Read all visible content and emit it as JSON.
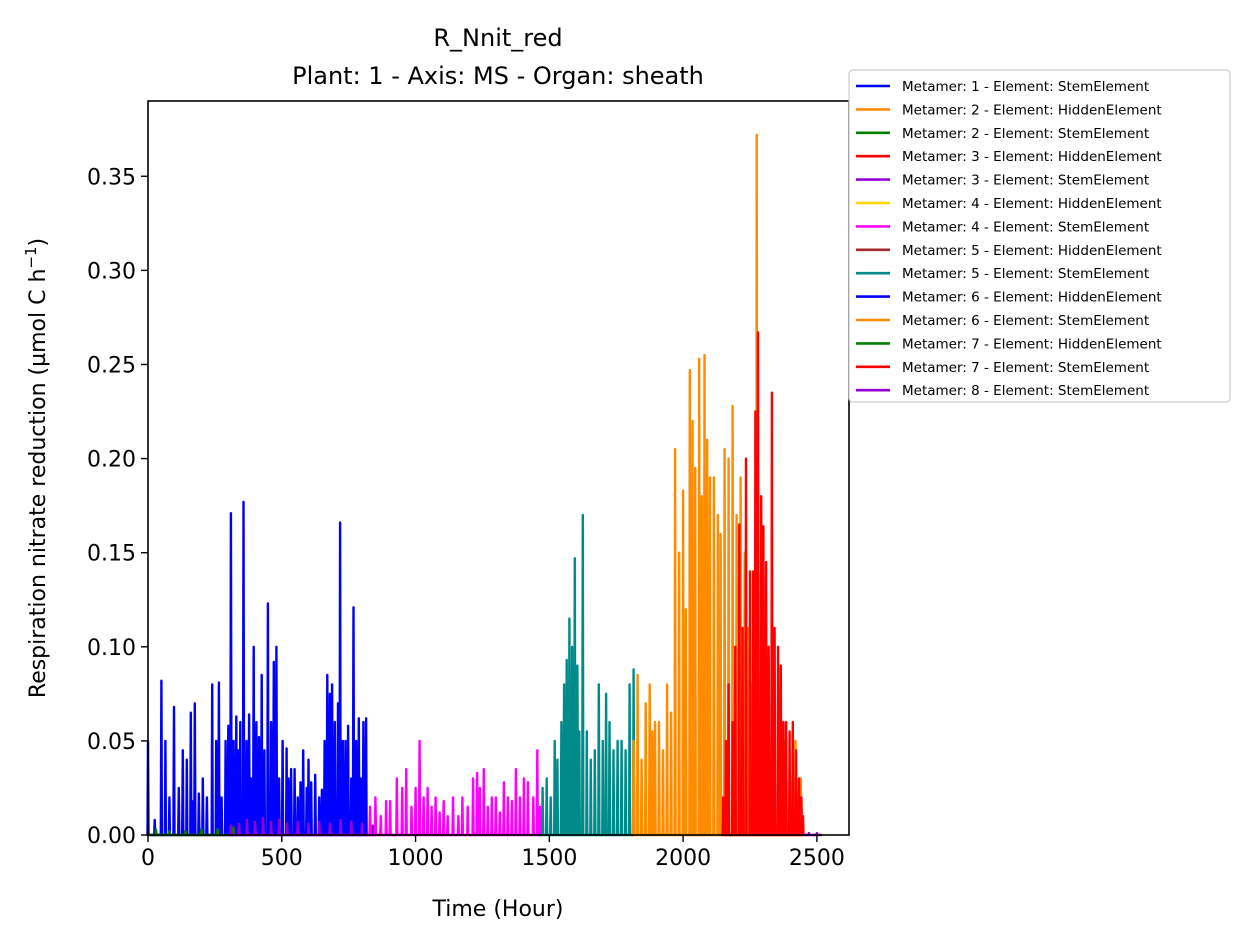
{
  "chart_data": {
    "type": "line",
    "title": "R_Nnit_red",
    "subtitle": "Plant: 1 - Axis: MS - Organ: sheath",
    "xlabel": "Time (Hour)",
    "ylabel": "Respiration nitrate reduction (µmol C h",
    "ylabel_sup": "−1",
    "ylabel_close": ")",
    "xlim": [
      0,
      2620
    ],
    "ylim": [
      0,
      0.39
    ],
    "x_ticks": [
      0,
      500,
      1000,
      1500,
      2000,
      2500
    ],
    "x_tick_labels": [
      "0",
      "500",
      "1000",
      "1500",
      "2000",
      "2500"
    ],
    "y_ticks": [
      0,
      0.05,
      0.1,
      0.15,
      0.2,
      0.25,
      0.3,
      0.35
    ],
    "y_tick_labels": [
      "0.00",
      "0.05",
      "0.10",
      "0.15",
      "0.20",
      "0.25",
      "0.30",
      "0.35"
    ],
    "grid": false,
    "legend_position": "outside-top-right",
    "series": [
      {
        "name": "Metamer: 1 - Element: StemElement",
        "color": "#0000ff",
        "peaks": [
          [
            0,
            0.05
          ],
          [
            25,
            0.008
          ],
          [
            50,
            0.082
          ],
          [
            65,
            0.05
          ],
          [
            80,
            0.02
          ],
          [
            97,
            0.068
          ],
          [
            115,
            0.025
          ],
          [
            130,
            0.045
          ],
          [
            145,
            0.04
          ],
          [
            160,
            0.065
          ],
          [
            170,
            0.018
          ],
          [
            175,
            0.07
          ],
          [
            190,
            0.022
          ],
          [
            205,
            0.03
          ],
          [
            220,
            0.02
          ],
          [
            240,
            0.08
          ],
          [
            255,
            0.05
          ],
          [
            265,
            0.081
          ],
          [
            275,
            0.02
          ],
          [
            290,
            0.05
          ],
          [
            300,
            0.058
          ],
          [
            310,
            0.171
          ],
          [
            320,
            0.05
          ],
          [
            330,
            0.063
          ],
          [
            338,
            0.045
          ],
          [
            345,
            0.06
          ],
          [
            357,
            0.177
          ],
          [
            368,
            0.05
          ],
          [
            378,
            0.064
          ],
          [
            385,
            0.03
          ],
          [
            395,
            0.1
          ],
          [
            405,
            0.06
          ],
          [
            415,
            0.052
          ],
          [
            425,
            0.085
          ],
          [
            435,
            0.045
          ],
          [
            448,
            0.123
          ],
          [
            460,
            0.06
          ],
          [
            470,
            0.092
          ],
          [
            480,
            0.1
          ],
          [
            490,
            0.03
          ],
          [
            503,
            0.05
          ],
          [
            518,
            0.046
          ],
          [
            525,
            0.03
          ],
          [
            535,
            0.035
          ],
          [
            548,
            0.035
          ],
          [
            560,
            0.02
          ],
          [
            570,
            0.028
          ],
          [
            580,
            0.045
          ],
          [
            593,
            0.025
          ],
          [
            600,
            0.04
          ],
          [
            610,
            0.028
          ],
          [
            625,
            0.032
          ],
          [
            640,
            0.02
          ],
          [
            650,
            0.024
          ],
          [
            660,
            0.05
          ],
          [
            670,
            0.085
          ],
          [
            680,
            0.075
          ],
          [
            688,
            0.08
          ],
          [
            698,
            0.06
          ],
          [
            710,
            0.07
          ],
          [
            718,
            0.166
          ],
          [
            728,
            0.05
          ],
          [
            738,
            0.05
          ],
          [
            748,
            0.058
          ],
          [
            760,
            0.03
          ],
          [
            768,
            0.121
          ],
          [
            778,
            0.05
          ],
          [
            788,
            0.062
          ],
          [
            795,
            0.03
          ],
          [
            805,
            0.06
          ],
          [
            815,
            0.062
          ]
        ],
        "span": [
          0,
          820
        ]
      },
      {
        "name": "Metamer: 2 - Element: HiddenElement",
        "color": "#ff8c00",
        "peaks": [],
        "span": null
      },
      {
        "name": "Metamer: 2 - Element: StemElement",
        "color": "#008000",
        "peaks": [
          [
            30,
            0.003
          ],
          [
            80,
            0.002
          ],
          [
            140,
            0.002
          ],
          [
            200,
            0.003
          ],
          [
            260,
            0.003
          ],
          [
            320,
            0.004
          ]
        ],
        "span": [
          0,
          330
        ]
      },
      {
        "name": "Metamer: 3 - Element: HiddenElement",
        "color": "#ff0000",
        "peaks": [],
        "span": null
      },
      {
        "name": "Metamer: 3 - Element: StemElement",
        "color": "#9400d3",
        "peaks": [
          [
            310,
            0.005
          ],
          [
            340,
            0.006
          ],
          [
            370,
            0.008
          ],
          [
            400,
            0.007
          ],
          [
            430,
            0.009
          ],
          [
            460,
            0.007
          ],
          [
            490,
            0.008
          ],
          [
            520,
            0.006
          ],
          [
            560,
            0.007
          ],
          [
            600,
            0.006
          ],
          [
            640,
            0.007
          ],
          [
            680,
            0.006
          ],
          [
            720,
            0.008
          ],
          [
            760,
            0.007
          ],
          [
            800,
            0.006
          ],
          [
            840,
            0.005
          ]
        ],
        "span": [
          300,
          850
        ]
      },
      {
        "name": "Metamer: 4 - Element: HiddenElement",
        "color": "#ffd700",
        "peaks": [],
        "span": null
      },
      {
        "name": "Metamer: 4 - Element: StemElement",
        "color": "#ff00ff",
        "peaks": [
          [
            830,
            0.015
          ],
          [
            850,
            0.02
          ],
          [
            870,
            0.01
          ],
          [
            890,
            0.018
          ],
          [
            905,
            0.018
          ],
          [
            930,
            0.03
          ],
          [
            950,
            0.025
          ],
          [
            965,
            0.035
          ],
          [
            985,
            0.015
          ],
          [
            1000,
            0.025
          ],
          [
            1015,
            0.05
          ],
          [
            1030,
            0.02
          ],
          [
            1045,
            0.025
          ],
          [
            1060,
            0.015
          ],
          [
            1075,
            0.02
          ],
          [
            1090,
            0.012
          ],
          [
            1105,
            0.018
          ],
          [
            1120,
            0.01
          ],
          [
            1140,
            0.02
          ],
          [
            1160,
            0.01
          ],
          [
            1175,
            0.02
          ],
          [
            1195,
            0.015
          ],
          [
            1215,
            0.03
          ],
          [
            1230,
            0.033
          ],
          [
            1240,
            0.025
          ],
          [
            1255,
            0.035
          ],
          [
            1270,
            0.015
          ],
          [
            1285,
            0.02
          ],
          [
            1300,
            0.02
          ],
          [
            1315,
            0.012
          ],
          [
            1330,
            0.028
          ],
          [
            1345,
            0.02
          ],
          [
            1360,
            0.018
          ],
          [
            1375,
            0.035
          ],
          [
            1390,
            0.02
          ],
          [
            1405,
            0.03
          ],
          [
            1420,
            0.028
          ],
          [
            1440,
            0.02
          ],
          [
            1455,
            0.045
          ],
          [
            1465,
            0.015
          ]
        ],
        "span": [
          820,
          1470
        ]
      },
      {
        "name": "Metamer: 5 - Element: HiddenElement",
        "color": "#a52a2a",
        "peaks": [],
        "span": null
      },
      {
        "name": "Metamer: 5 - Element: StemElement",
        "color": "#008b8b",
        "peaks": [
          [
            1475,
            0.025
          ],
          [
            1490,
            0.03
          ],
          [
            1505,
            0.02
          ],
          [
            1520,
            0.05
          ],
          [
            1530,
            0.04
          ],
          [
            1545,
            0.06
          ],
          [
            1555,
            0.08
          ],
          [
            1565,
            0.093
          ],
          [
            1575,
            0.115
          ],
          [
            1585,
            0.1
          ],
          [
            1595,
            0.147
          ],
          [
            1605,
            0.09
          ],
          [
            1612,
            0.055
          ],
          [
            1625,
            0.17
          ],
          [
            1640,
            0.055
          ],
          [
            1655,
            0.04
          ],
          [
            1670,
            0.045
          ],
          [
            1685,
            0.08
          ],
          [
            1700,
            0.05
          ],
          [
            1712,
            0.075
          ],
          [
            1725,
            0.06
          ],
          [
            1740,
            0.045
          ],
          [
            1755,
            0.05
          ],
          [
            1770,
            0.05
          ],
          [
            1785,
            0.045
          ],
          [
            1800,
            0.08
          ],
          [
            1815,
            0.088
          ]
        ],
        "span": [
          1460,
          1820
        ]
      },
      {
        "name": "Metamer: 6 - Element: HiddenElement",
        "color": "#0000ff",
        "peaks": [],
        "span": null
      },
      {
        "name": "Metamer: 6 - Element: StemElement",
        "color": "#ff8c00",
        "peaks": [
          [
            1815,
            0.05
          ],
          [
            1830,
            0.085
          ],
          [
            1845,
            0.04
          ],
          [
            1860,
            0.07
          ],
          [
            1875,
            0.08
          ],
          [
            1885,
            0.055
          ],
          [
            1895,
            0.06
          ],
          [
            1910,
            0.06
          ],
          [
            1925,
            0.045
          ],
          [
            1940,
            0.08
          ],
          [
            1955,
            0.065
          ],
          [
            1970,
            0.205
          ],
          [
            1985,
            0.15
          ],
          [
            2000,
            0.183
          ],
          [
            2010,
            0.12
          ],
          [
            2025,
            0.247
          ],
          [
            2035,
            0.22
          ],
          [
            2045,
            0.195
          ],
          [
            2060,
            0.253
          ],
          [
            2070,
            0.18
          ],
          [
            2080,
            0.255
          ],
          [
            2090,
            0.21
          ],
          [
            2100,
            0.19
          ],
          [
            2115,
            0.19
          ],
          [
            2130,
            0.17
          ],
          [
            2140,
            0.16
          ],
          [
            2155,
            0.205
          ],
          [
            2170,
            0.2
          ],
          [
            2185,
            0.228
          ],
          [
            2200,
            0.17
          ],
          [
            2215,
            0.19
          ],
          [
            2230,
            0.15
          ],
          [
            2245,
            0.11
          ],
          [
            2255,
            0.08
          ],
          [
            2265,
            0.12
          ],
          [
            2275,
            0.372
          ],
          [
            2290,
            0.07
          ],
          [
            2300,
            0.04
          ],
          [
            2320,
            0.04
          ],
          [
            2340,
            0.045
          ],
          [
            2360,
            0.03
          ],
          [
            2380,
            0.05
          ],
          [
            2400,
            0.03
          ],
          [
            2420,
            0.05
          ],
          [
            2440,
            0.03
          ]
        ],
        "span": [
          1810,
          2450
        ]
      },
      {
        "name": "Metamer: 7 - Element: HiddenElement",
        "color": "#008000",
        "peaks": [],
        "span": null
      },
      {
        "name": "Metamer: 7 - Element: StemElement",
        "color": "#ff0000",
        "peaks": [
          [
            2150,
            0.02
          ],
          [
            2160,
            0.05
          ],
          [
            2170,
            0.08
          ],
          [
            2185,
            0.06
          ],
          [
            2195,
            0.1
          ],
          [
            2210,
            0.165
          ],
          [
            2222,
            0.11
          ],
          [
            2235,
            0.2
          ],
          [
            2250,
            0.14
          ],
          [
            2262,
            0.14
          ],
          [
            2270,
            0.225
          ],
          [
            2280,
            0.267
          ],
          [
            2292,
            0.18
          ],
          [
            2300,
            0.164
          ],
          [
            2310,
            0.145
          ],
          [
            2320,
            0.1
          ],
          [
            2332,
            0.235
          ],
          [
            2342,
            0.11
          ],
          [
            2355,
            0.1
          ],
          [
            2365,
            0.09
          ],
          [
            2375,
            0.06
          ],
          [
            2385,
            0.06
          ],
          [
            2398,
            0.055
          ],
          [
            2410,
            0.06
          ],
          [
            2422,
            0.045
          ],
          [
            2433,
            0.03
          ],
          [
            2442,
            0.02
          ],
          [
            2448,
            0.01
          ]
        ],
        "span": [
          2145,
          2450
        ]
      },
      {
        "name": "Metamer: 8 - Element: StemElement",
        "color": "#9400d3",
        "peaks": [
          [
            2470,
            0.001
          ],
          [
            2500,
            0.001
          ]
        ],
        "span": [
          2450,
          2520
        ]
      }
    ]
  }
}
